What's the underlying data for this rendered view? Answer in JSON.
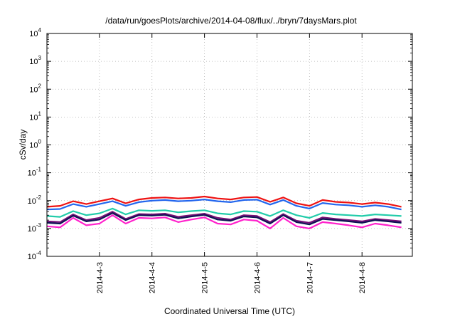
{
  "chart_data": {
    "type": "line",
    "title": "/data/run/goesPlots/archive/2014-04-08/flux/../bryn/7daysMars.plot",
    "xlabel": "Coordinated Universal Time (UTC)",
    "ylabel": "cSv/day",
    "y_scale": "log",
    "ylim_exponents": [
      -4,
      4
    ],
    "y_tick_labels": [
      {
        "base": "10",
        "exp": "-4"
      },
      {
        "base": "10",
        "exp": "-3"
      },
      {
        "base": "10",
        "exp": "-2"
      },
      {
        "base": "10",
        "exp": "-1"
      },
      {
        "base": "10",
        "exp": "0"
      },
      {
        "base": "10",
        "exp": "1"
      },
      {
        "base": "10",
        "exp": "2"
      },
      {
        "base": "10",
        "exp": "3"
      },
      {
        "base": "10",
        "exp": "4"
      }
    ],
    "xlim": [
      "2014-04-02 00:00",
      "2014-04-08 23:00"
    ],
    "x_ticks": [
      "2014-4-3",
      "2014-4-4",
      "2014-4-5",
      "2014-4-6",
      "2014-4-7",
      "2014-4-8"
    ],
    "grid": true,
    "legend": "none",
    "series": [
      {
        "color": "#ee1111",
        "x": [
          "2014-04-02 00:00",
          "2014-04-02 06:00",
          "2014-04-02 12:00",
          "2014-04-02 18:00",
          "2014-04-03 00:00",
          "2014-04-03 06:00",
          "2014-04-03 12:00",
          "2014-04-03 18:00",
          "2014-04-04 00:00",
          "2014-04-04 06:00",
          "2014-04-04 12:00",
          "2014-04-04 18:00",
          "2014-04-05 00:00",
          "2014-04-05 06:00",
          "2014-04-05 12:00",
          "2014-04-05 18:00",
          "2014-04-06 00:00",
          "2014-04-06 06:00",
          "2014-04-06 12:00",
          "2014-04-06 18:00",
          "2014-04-07 00:00",
          "2014-04-07 06:00",
          "2014-04-07 12:00",
          "2014-04-07 18:00",
          "2014-04-08 00:00",
          "2014-04-08 06:00",
          "2014-04-08 12:00",
          "2014-04-08 18:00"
        ],
        "y": [
          0.006,
          0.0065,
          0.0095,
          0.0075,
          0.0095,
          0.012,
          0.008,
          0.011,
          0.0125,
          0.013,
          0.012,
          0.0125,
          0.014,
          0.012,
          0.011,
          0.013,
          0.0135,
          0.009,
          0.013,
          0.008,
          0.0065,
          0.0105,
          0.009,
          0.0085,
          0.0075,
          0.0085,
          0.0075,
          0.006
        ]
      },
      {
        "color": "#2266ee",
        "x": [
          "2014-04-02 00:00",
          "2014-04-02 06:00",
          "2014-04-02 12:00",
          "2014-04-02 18:00",
          "2014-04-03 00:00",
          "2014-04-03 06:00",
          "2014-04-03 12:00",
          "2014-04-03 18:00",
          "2014-04-04 00:00",
          "2014-04-04 06:00",
          "2014-04-04 12:00",
          "2014-04-04 18:00",
          "2014-04-05 00:00",
          "2014-04-05 06:00",
          "2014-04-05 12:00",
          "2014-04-05 18:00",
          "2014-04-06 00:00",
          "2014-04-06 06:00",
          "2014-04-06 12:00",
          "2014-04-06 18:00",
          "2014-04-07 00:00",
          "2014-04-07 06:00",
          "2014-04-07 12:00",
          "2014-04-07 18:00",
          "2014-04-08 00:00",
          "2014-04-08 06:00",
          "2014-04-08 12:00",
          "2014-04-08 18:00"
        ],
        "y": [
          0.0048,
          0.005,
          0.0075,
          0.006,
          0.0075,
          0.0095,
          0.0065,
          0.0088,
          0.01,
          0.0105,
          0.0095,
          0.01,
          0.011,
          0.0095,
          0.0088,
          0.0105,
          0.0108,
          0.0072,
          0.0105,
          0.0065,
          0.0052,
          0.0082,
          0.0072,
          0.0068,
          0.006,
          0.0068,
          0.006,
          0.0048
        ]
      },
      {
        "color": "#22ccaa",
        "x": [
          "2014-04-02 00:00",
          "2014-04-02 06:00",
          "2014-04-02 12:00",
          "2014-04-02 18:00",
          "2014-04-03 00:00",
          "2014-04-03 06:00",
          "2014-04-03 12:00",
          "2014-04-03 18:00",
          "2014-04-04 00:00",
          "2014-04-04 06:00",
          "2014-04-04 12:00",
          "2014-04-04 18:00",
          "2014-04-05 00:00",
          "2014-04-05 06:00",
          "2014-04-05 12:00",
          "2014-04-05 18:00",
          "2014-04-06 00:00",
          "2014-04-06 06:00",
          "2014-04-06 12:00",
          "2014-04-06 18:00",
          "2014-04-07 00:00",
          "2014-04-07 06:00",
          "2014-04-07 12:00",
          "2014-04-07 18:00",
          "2014-04-08 00:00",
          "2014-04-08 06:00",
          "2014-04-08 12:00",
          "2014-04-08 18:00"
        ],
        "y": [
          0.0028,
          0.0026,
          0.0042,
          0.003,
          0.0035,
          0.0052,
          0.0032,
          0.0045,
          0.0043,
          0.0045,
          0.0038,
          0.0042,
          0.0045,
          0.0035,
          0.0032,
          0.0042,
          0.004,
          0.0028,
          0.0045,
          0.003,
          0.0024,
          0.0036,
          0.0032,
          0.003,
          0.0028,
          0.0032,
          0.003,
          0.0028
        ]
      },
      {
        "color": "#771177",
        "x": [
          "2014-04-02 00:00",
          "2014-04-02 06:00",
          "2014-04-02 12:00",
          "2014-04-02 18:00",
          "2014-04-03 00:00",
          "2014-04-03 06:00",
          "2014-04-03 12:00",
          "2014-04-03 18:00",
          "2014-04-04 00:00",
          "2014-04-04 06:00",
          "2014-04-04 12:00",
          "2014-04-04 18:00",
          "2014-04-05 00:00",
          "2014-04-05 06:00",
          "2014-04-05 12:00",
          "2014-04-05 18:00",
          "2014-04-06 00:00",
          "2014-04-06 06:00",
          "2014-04-06 12:00",
          "2014-04-06 18:00",
          "2014-04-07 00:00",
          "2014-04-07 06:00",
          "2014-04-07 12:00",
          "2014-04-07 18:00",
          "2014-04-08 00:00",
          "2014-04-08 06:00",
          "2014-04-08 12:00",
          "2014-04-08 18:00"
        ],
        "y": [
          0.0018,
          0.0017,
          0.0032,
          0.002,
          0.0024,
          0.004,
          0.0022,
          0.0033,
          0.0032,
          0.0034,
          0.0026,
          0.003,
          0.0034,
          0.0024,
          0.0021,
          0.003,
          0.0028,
          0.0017,
          0.0033,
          0.0019,
          0.0016,
          0.0025,
          0.0022,
          0.002,
          0.0018,
          0.0022,
          0.002,
          0.0018
        ]
      },
      {
        "color": "#111155",
        "x": [
          "2014-04-02 00:00",
          "2014-04-02 06:00",
          "2014-04-02 12:00",
          "2014-04-02 18:00",
          "2014-04-03 00:00",
          "2014-04-03 06:00",
          "2014-04-03 12:00",
          "2014-04-03 18:00",
          "2014-04-04 00:00",
          "2014-04-04 06:00",
          "2014-04-04 12:00",
          "2014-04-04 18:00",
          "2014-04-05 00:00",
          "2014-04-05 06:00",
          "2014-04-05 12:00",
          "2014-04-05 18:00",
          "2014-04-06 00:00",
          "2014-04-06 06:00",
          "2014-04-06 12:00",
          "2014-04-06 18:00",
          "2014-04-07 00:00",
          "2014-04-07 06:00",
          "2014-04-07 12:00",
          "2014-04-07 18:00",
          "2014-04-08 00:00",
          "2014-04-08 06:00",
          "2014-04-08 12:00",
          "2014-04-08 18:00"
        ],
        "y": [
          0.0016,
          0.0015,
          0.0029,
          0.0018,
          0.0021,
          0.0036,
          0.002,
          0.003,
          0.0029,
          0.0031,
          0.0023,
          0.0027,
          0.0031,
          0.0021,
          0.0019,
          0.0027,
          0.0025,
          0.0015,
          0.003,
          0.0017,
          0.0014,
          0.0022,
          0.002,
          0.0018,
          0.0016,
          0.002,
          0.0018,
          0.0016
        ]
      },
      {
        "color": "#ff22cc",
        "x": [
          "2014-04-02 00:00",
          "2014-04-02 06:00",
          "2014-04-02 12:00",
          "2014-04-02 18:00",
          "2014-04-03 00:00",
          "2014-04-03 06:00",
          "2014-04-03 12:00",
          "2014-04-03 18:00",
          "2014-04-04 00:00",
          "2014-04-04 06:00",
          "2014-04-04 12:00",
          "2014-04-04 18:00",
          "2014-04-05 00:00",
          "2014-04-05 06:00",
          "2014-04-05 12:00",
          "2014-04-05 18:00",
          "2014-04-06 00:00",
          "2014-04-06 06:00",
          "2014-04-06 12:00",
          "2014-04-06 18:00",
          "2014-04-07 00:00",
          "2014-04-07 06:00",
          "2014-04-07 12:00",
          "2014-04-07 18:00",
          "2014-04-08 00:00",
          "2014-04-08 06:00",
          "2014-04-08 12:00",
          "2014-04-08 18:00"
        ],
        "y": [
          0.0012,
          0.0011,
          0.0024,
          0.0013,
          0.0015,
          0.003,
          0.0015,
          0.0024,
          0.0023,
          0.0025,
          0.0017,
          0.0021,
          0.0025,
          0.0015,
          0.0014,
          0.0021,
          0.0019,
          0.001,
          0.0024,
          0.0012,
          0.001,
          0.0017,
          0.0015,
          0.0013,
          0.0011,
          0.0015,
          0.0013,
          0.0011
        ]
      }
    ]
  }
}
